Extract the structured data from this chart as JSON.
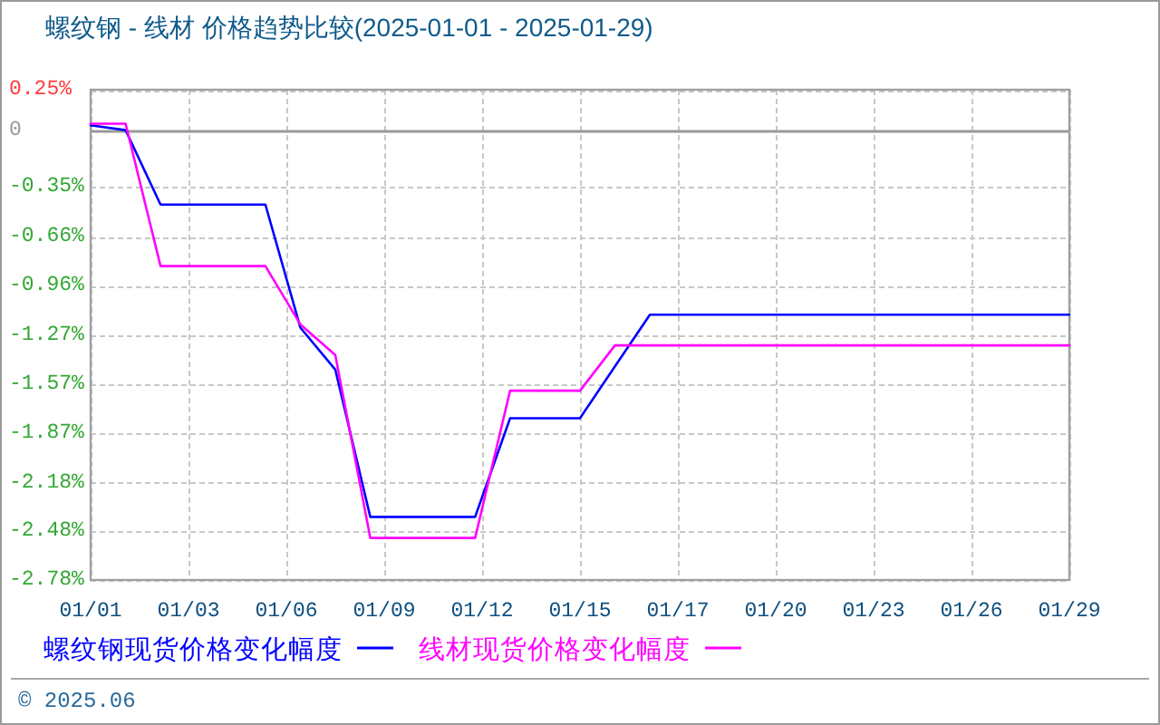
{
  "chart_data": {
    "type": "line",
    "title": "螺纹钢 - 线材 价格趋势比较(2025-01-01 - 2025-01-29)",
    "x": [
      "2025-01-01",
      "2025-01-02",
      "2025-01-03",
      "2025-01-04",
      "2025-01-05",
      "2025-01-06",
      "2025-01-07",
      "2025-01-08",
      "2025-01-09",
      "2025-01-10",
      "2025-01-11",
      "2025-01-12",
      "2025-01-13",
      "2025-01-14",
      "2025-01-15",
      "2025-01-16",
      "2025-01-17",
      "2025-01-18",
      "2025-01-19",
      "2025-01-20",
      "2025-01-21",
      "2025-01-22",
      "2025-01-23",
      "2025-01-24",
      "2025-01-25",
      "2025-01-26",
      "2025-01-27",
      "2025-01-28",
      "2025-01-29"
    ],
    "series": [
      {
        "name": "螺纹钢现货价格变化幅度",
        "color": "#0000ff",
        "values": [
          0.03,
          0,
          -0.46,
          -0.46,
          -0.46,
          -0.46,
          -1.22,
          -1.48,
          -2.39,
          -2.39,
          -2.39,
          -2.39,
          -1.78,
          -1.78,
          -1.78,
          -1.46,
          -1.14,
          -1.14,
          -1.14,
          -1.14,
          -1.14,
          -1.14,
          -1.14,
          -1.14,
          -1.14,
          -1.14,
          -1.14,
          -1.14,
          -1.14
        ]
      },
      {
        "name": "线材现货价格变化幅度",
        "color": "#ff00ff",
        "values": [
          0.04,
          0.04,
          -0.84,
          -0.84,
          -0.84,
          -0.84,
          -1.2,
          -1.39,
          -2.52,
          -2.52,
          -2.52,
          -2.52,
          -1.61,
          -1.61,
          -1.61,
          -1.33,
          -1.33,
          -1.33,
          -1.33,
          -1.33,
          -1.33,
          -1.33,
          -1.33,
          -1.33,
          -1.33,
          -1.33,
          -1.33,
          -1.33,
          -1.33
        ]
      }
    ],
    "xlim": [
      "2025-01-01",
      "2025-01-29"
    ],
    "xticks": [
      {
        "value": "2025-01-01T00:00",
        "label": "01/01"
      },
      {
        "value": "2025-01-03T19:12",
        "label": "01/03"
      },
      {
        "value": "2025-01-06T14:24",
        "label": "01/06"
      },
      {
        "value": "2025-01-09T09:36",
        "label": "01/09"
      },
      {
        "value": "2025-01-12T04:48",
        "label": "01/12"
      },
      {
        "value": "2025-01-15T00:00",
        "label": "01/15"
      },
      {
        "value": "2025-01-17T19:12",
        "label": "01/17"
      },
      {
        "value": "2025-01-20T14:24",
        "label": "01/20"
      },
      {
        "value": "2025-01-23T09:36",
        "label": "01/23"
      },
      {
        "value": "2025-01-26T04:48",
        "label": "01/26"
      },
      {
        "value": "2025-01-29T00:00",
        "label": "01/29"
      }
    ],
    "ylim": [
      -2.78,
      0.25
    ],
    "yticks": [
      {
        "value": 0.25,
        "label": "0.25%"
      },
      0,
      {
        "value": -0.35,
        "label": "-0.35%"
      },
      {
        "value": -0.66,
        "label": "-0.66%"
      },
      {
        "value": -0.96,
        "label": "-0.96%"
      },
      {
        "value": -1.27,
        "label": "-1.27%"
      },
      {
        "value": -1.57,
        "label": "-1.57%"
      },
      {
        "value": -1.87,
        "label": "-1.87%"
      },
      {
        "value": -2.18,
        "label": "-2.18%"
      },
      {
        "value": -2.48,
        "label": "-2.48%"
      },
      {
        "value": -2.78,
        "label": "-2.78%"
      }
    ],
    "ref_lines": [
      {
        "axis": "y",
        "value": 0,
        "color": "#999999"
      }
    ],
    "grid": true,
    "legend": "bottom",
    "line_style": "solid",
    "annotations": [
      "© 2025.06"
    ]
  }
}
